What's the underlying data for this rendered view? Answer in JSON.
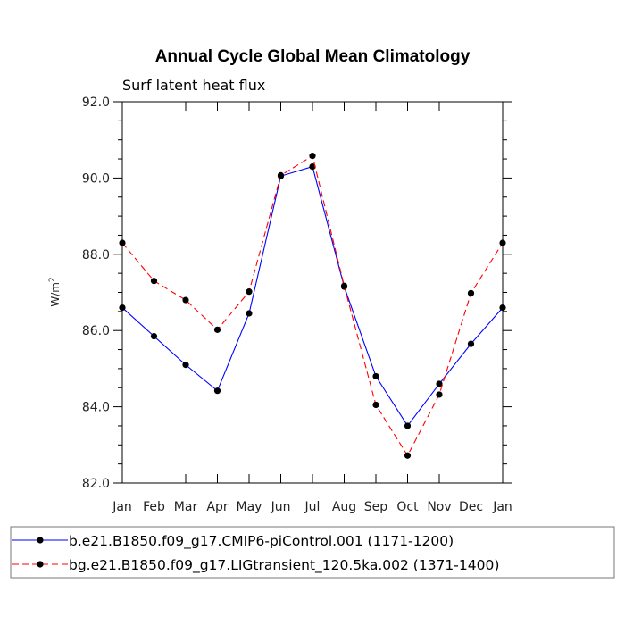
{
  "chart_data": {
    "type": "line",
    "title": "Annual Cycle Global Mean Climatology",
    "subtitle": "Surf latent heat flux",
    "xlabel": "",
    "ylabel": "W/m",
    "ylabel_sup": "2",
    "categories": [
      "Jan",
      "Feb",
      "Mar",
      "Apr",
      "May",
      "Jun",
      "Jul",
      "Aug",
      "Sep",
      "Oct",
      "Nov",
      "Dec",
      "Jan"
    ],
    "ylim": [
      82.0,
      92.0
    ],
    "yticks": [
      82.0,
      84.0,
      86.0,
      88.0,
      90.0,
      92.0
    ],
    "ytick_labels": [
      "82.0",
      "84.0",
      "86.0",
      "88.0",
      "90.0",
      "92.0"
    ],
    "grid": false,
    "legend_position": "bottom",
    "series": [
      {
        "name": "b.e21.B1850.f09_g17.CMIP6-piControl.001 (1171-1200)",
        "color": "#0000ff",
        "style": "solid",
        "values": [
          86.6,
          85.85,
          85.1,
          84.42,
          86.45,
          90.05,
          90.3,
          87.15,
          84.8,
          83.5,
          84.6,
          85.65,
          86.6
        ]
      },
      {
        "name": "bg.e21.B1850.f09_g17.LIGtransient_120.5ka.002 (1371-1400)",
        "color": "#ff0000",
        "style": "dashed",
        "values": [
          88.3,
          87.3,
          86.8,
          86.02,
          87.02,
          90.07,
          90.58,
          87.17,
          84.05,
          82.72,
          84.32,
          86.98,
          88.3
        ]
      }
    ]
  }
}
